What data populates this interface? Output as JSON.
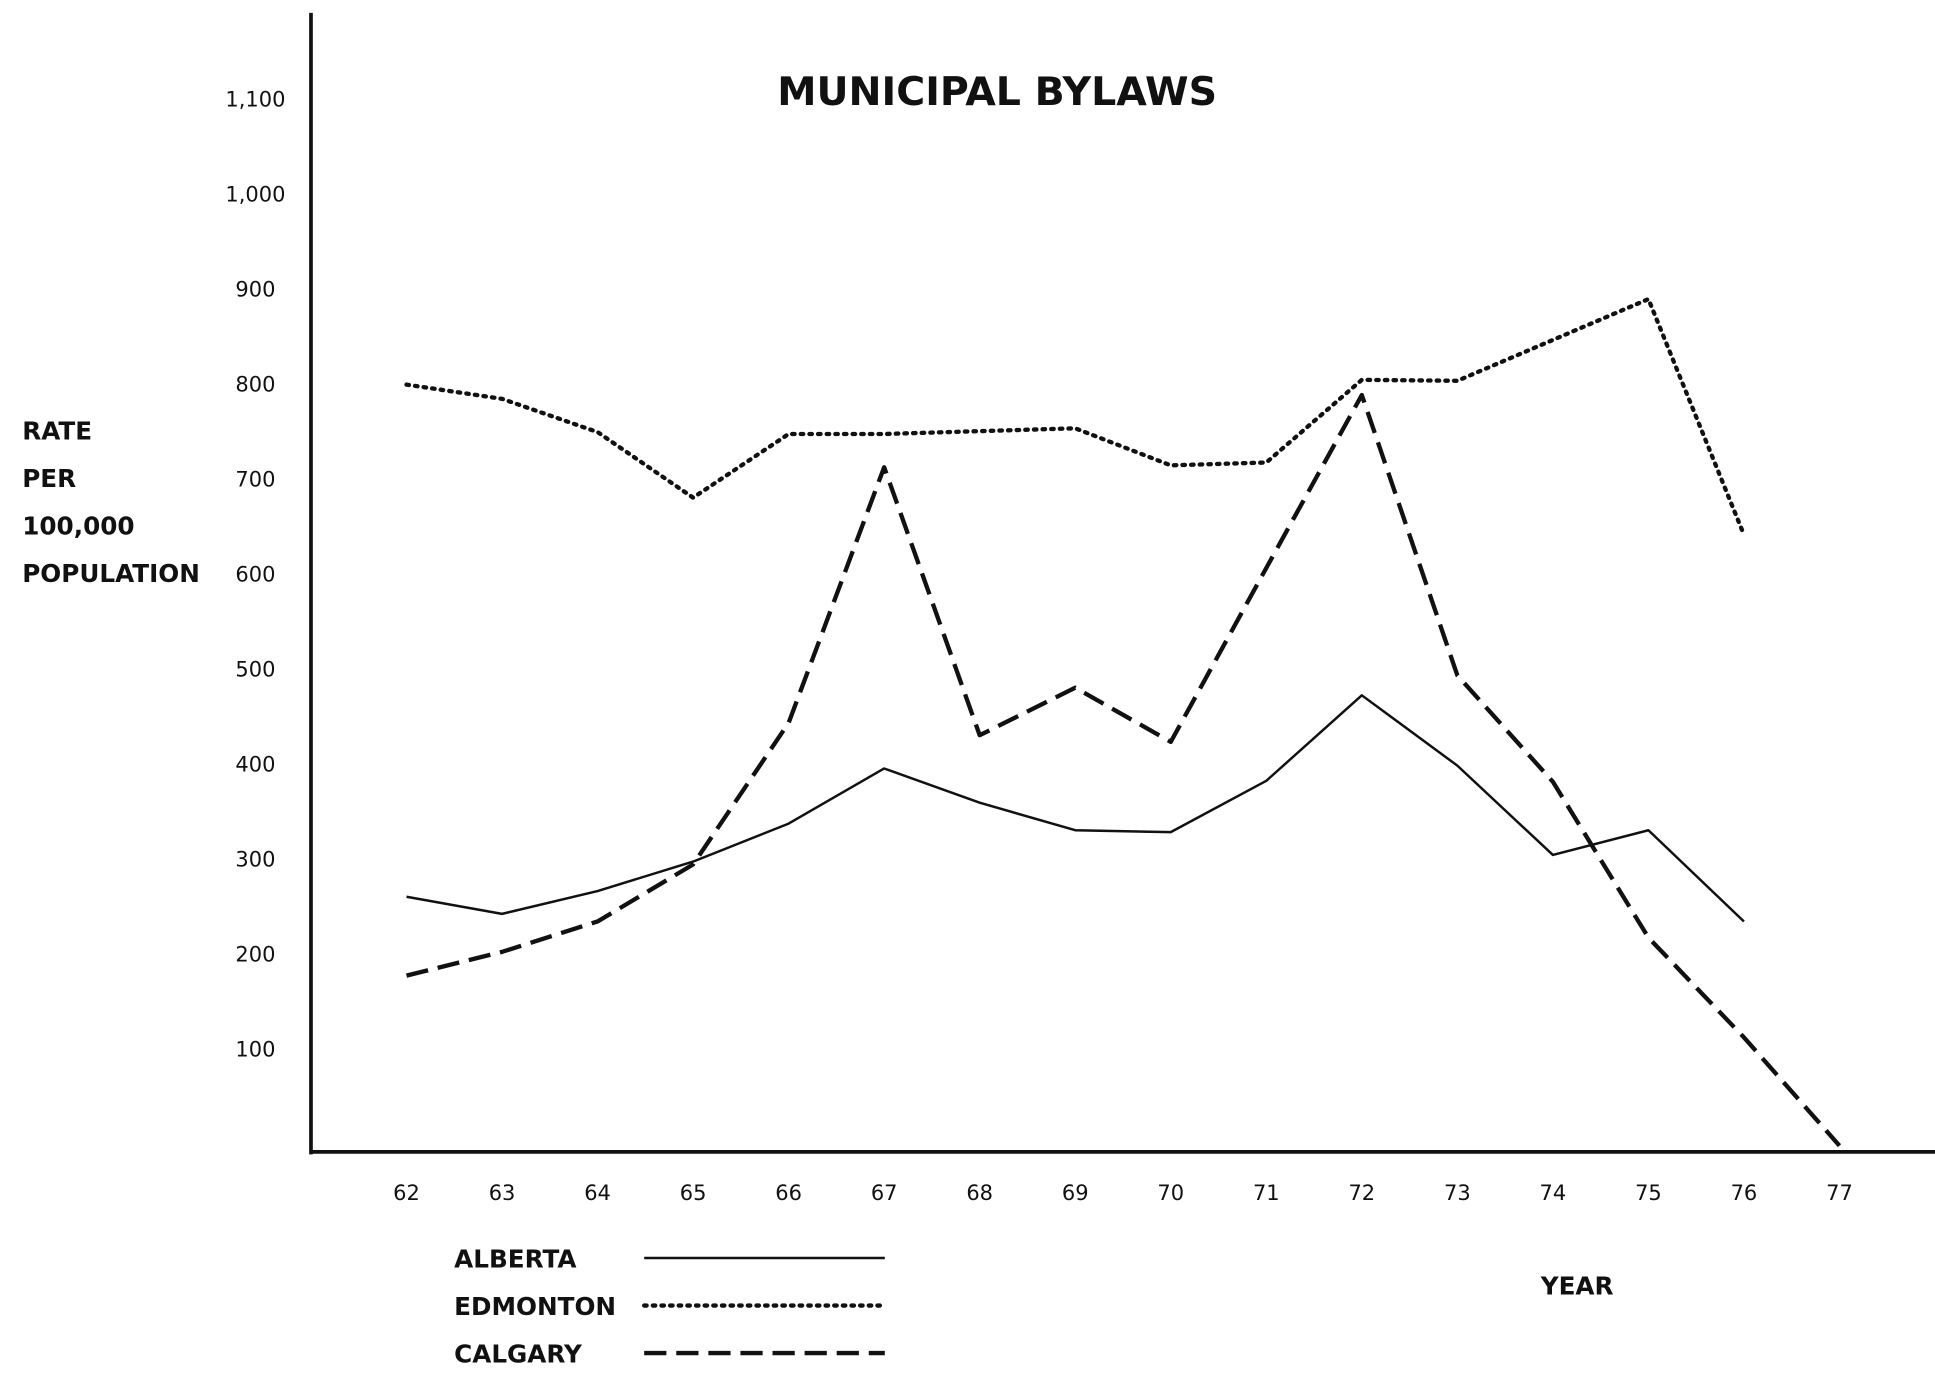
{
  "chart_data": {
    "type": "line",
    "title": "MUNICIPAL  BYLAWS",
    "ylabel": [
      "RATE",
      "PER",
      "100,000",
      "POPULATION"
    ],
    "xlabel": "YEAR",
    "x": [
      62,
      63,
      64,
      65,
      66,
      67,
      68,
      69,
      70,
      71,
      72,
      73,
      74,
      75,
      76,
      77
    ],
    "xlim": [
      61,
      78
    ],
    "xticks": [
      62,
      63,
      64,
      65,
      66,
      67,
      68,
      69,
      70,
      71,
      72,
      73,
      74,
      75,
      76,
      77
    ],
    "ylim": [
      0,
      1200
    ],
    "yticks": [
      100,
      200,
      300,
      400,
      500,
      600,
      700,
      800,
      900,
      {
        "value": 1000,
        "label": "1,000"
      },
      {
        "value": 1100,
        "label": "1,100"
      }
    ],
    "grid": false,
    "legend": "bottom left",
    "series": [
      {
        "name": "ALBERTA",
        "color": "#111111",
        "style": "solid",
        "values": [
          262,
          244,
          268,
          299,
          339,
          397,
          361,
          332,
          330,
          384,
          474,
          400,
          306,
          332,
          236,
          null
        ]
      },
      {
        "name": "EDMONTON",
        "color": "#111111",
        "style": "dotted",
        "values": [
          801,
          786,
          751,
          682,
          749,
          749,
          752,
          755,
          716,
          719,
          806,
          805,
          848,
          891,
          643,
          null
        ]
      },
      {
        "name": "CALGARY",
        "color": "#111111",
        "style": "dashed",
        "values": [
          179,
          204,
          236,
          296,
          445,
          714,
          432,
          482,
          425,
          608,
          790,
          495,
          383,
          219,
          114,
          0
        ]
      }
    ]
  }
}
